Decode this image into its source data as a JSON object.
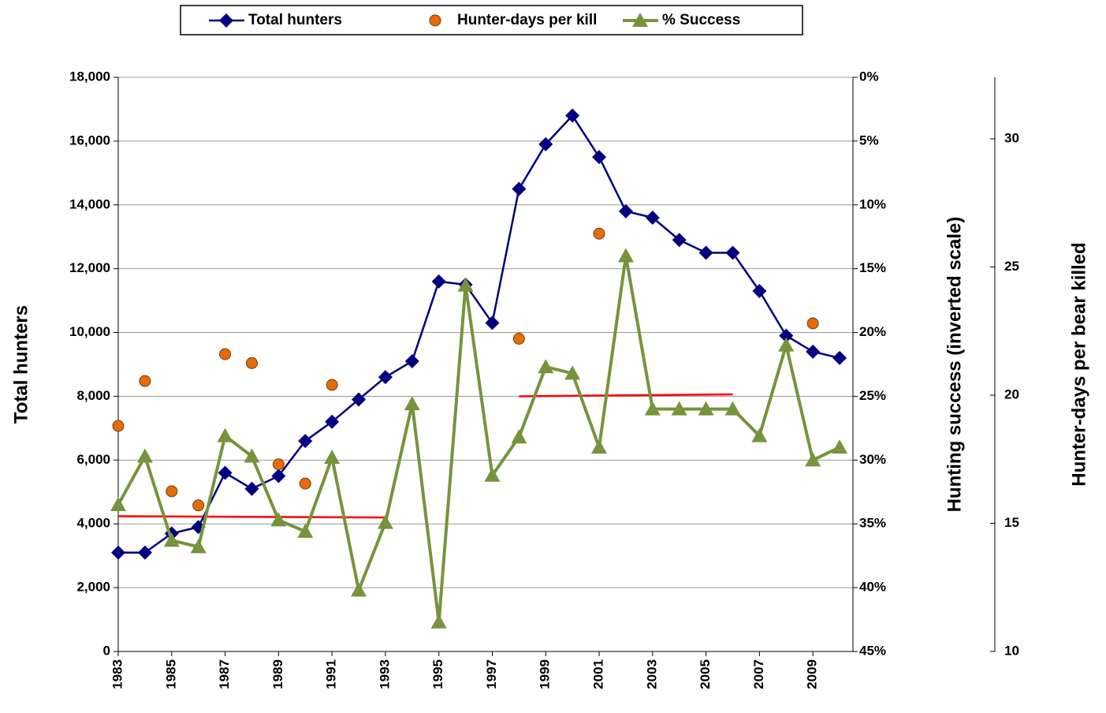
{
  "chart_data": {
    "type": "line",
    "x": [
      1983,
      1984,
      1985,
      1986,
      1987,
      1988,
      1989,
      1990,
      1991,
      1992,
      1993,
      1994,
      1995,
      1996,
      1997,
      1998,
      1999,
      2000,
      2001,
      2002,
      2003,
      2004,
      2005,
      2006,
      2007,
      2008,
      2009,
      2010
    ],
    "xlim": [
      1983,
      2010.5
    ],
    "xticks": [
      1983,
      1985,
      1987,
      1989,
      1991,
      1993,
      1995,
      1997,
      1999,
      2001,
      2003,
      2005,
      2007,
      2009
    ],
    "ylabel": "Total hunters",
    "ylim": [
      0,
      18000
    ],
    "yticks": [
      0,
      {
        "value": 2000,
        "label": "2,000"
      },
      {
        "value": 4000,
        "label": "4,000"
      },
      {
        "value": 6000,
        "label": "6,000"
      },
      {
        "value": 8000,
        "label": "8,000"
      },
      {
        "value": 10000,
        "label": "10,000"
      },
      {
        "value": 12000,
        "label": "12,000"
      },
      {
        "value": 14000,
        "label": "14,000"
      },
      {
        "value": 16000,
        "label": "16,000"
      },
      {
        "value": 18000,
        "label": "18,000"
      }
    ],
    "y2label": "Hunting success (inverted scale)",
    "y2lim": [
      45,
      0
    ],
    "y2ticks": [
      {
        "value": 0,
        "label": "0%"
      },
      {
        "value": 5,
        "label": "5%"
      },
      {
        "value": 10,
        "label": "10%"
      },
      {
        "value": 15,
        "label": "15%"
      },
      {
        "value": 20,
        "label": "20%"
      },
      {
        "value": 25,
        "label": "25%"
      },
      {
        "value": 30,
        "label": "30%"
      },
      {
        "value": 35,
        "label": "35%"
      },
      {
        "value": 40,
        "label": "40%"
      },
      {
        "value": 45,
        "label": "45%"
      }
    ],
    "y3label": "Hunter-days per bear killed",
    "y3lim": [
      10,
      32.4
    ],
    "y3ticks": [
      10,
      15,
      20,
      25,
      30
    ],
    "grid": true,
    "series": [
      {
        "name": "Total  hunters",
        "color": "#000080",
        "marker": "diamond",
        "line": true,
        "values": [
          3100,
          3100,
          3700,
          3900,
          5600,
          5100,
          5500,
          6600,
          7200,
          7900,
          8600,
          9100,
          11600,
          11500,
          10300,
          14500,
          15900,
          16800,
          15500,
          13800,
          13600,
          12900,
          12500,
          12500,
          11300,
          9900,
          9400,
          9200
        ]
      },
      {
        "name": "Hunter-days per kill",
        "color": "#E46C0A",
        "marker": "circle",
        "line": false,
        "axis": "y3",
        "values": [
          18.8,
          20.55,
          16.25,
          15.7,
          21.6,
          21.25,
          17.3,
          16.55,
          20.4,
          null,
          null,
          null,
          null,
          null,
          null,
          22.2,
          null,
          null,
          26.3,
          null,
          null,
          null,
          null,
          null,
          null,
          null,
          22.8,
          null
        ]
      },
      {
        "name": "% Success",
        "color": "#77933C",
        "marker": "triangle",
        "line": true,
        "axis": "y2",
        "values": [
          33.5,
          29.7,
          36.3,
          36.8,
          28.1,
          29.7,
          34.7,
          35.6,
          29.8,
          40.2,
          34.9,
          25.6,
          42.7,
          16.3,
          31.2,
          28.2,
          22.7,
          23.2,
          29.0,
          14.0,
          26.0,
          26.0,
          26.0,
          26.0,
          28.1,
          21.0,
          30.0,
          29.0
        ]
      }
    ],
    "trend_lines": [
      {
        "color": "#FF0000",
        "axis": "y2",
        "x": [
          1983,
          1993
        ],
        "values": [
          34.4,
          34.5
        ]
      },
      {
        "color": "#FF0000",
        "axis": "y2",
        "x": [
          1998,
          2006
        ],
        "values": [
          25.0,
          24.85
        ]
      }
    ]
  }
}
